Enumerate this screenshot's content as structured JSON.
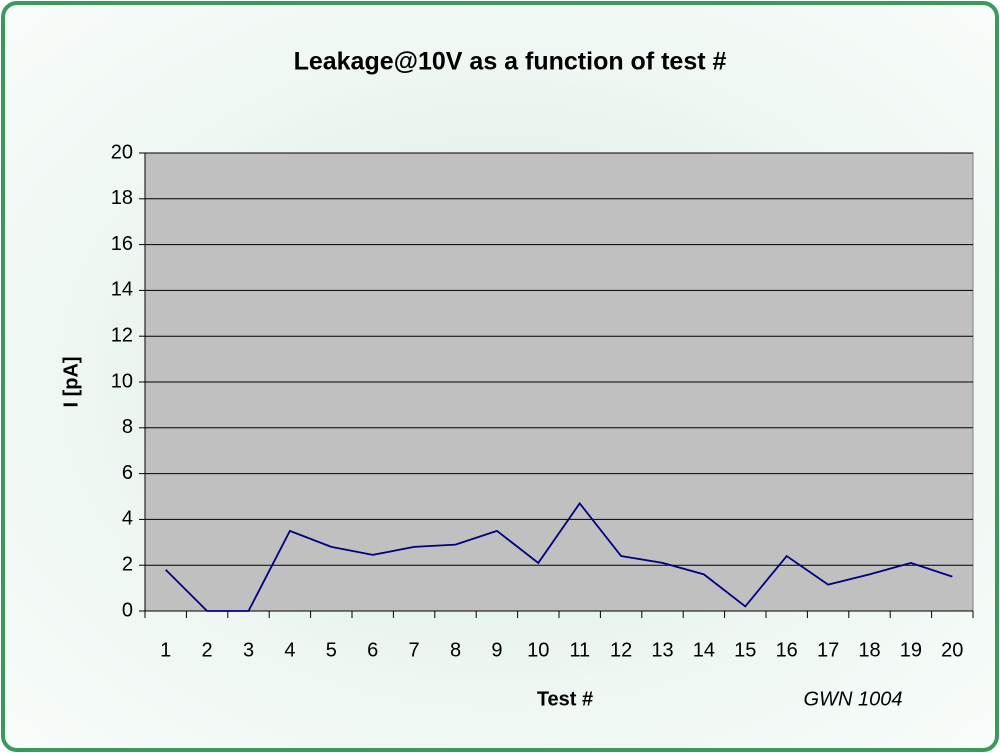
{
  "chart_data": {
    "type": "line",
    "title": "Leakage@10V as a function of test #",
    "x_label": "Test #",
    "y_label": "I [pA]",
    "annotation": "GWN 1004",
    "categories": [
      "1",
      "2",
      "3",
      "4",
      "5",
      "6",
      "7",
      "8",
      "9",
      "10",
      "11",
      "12",
      "13",
      "14",
      "15",
      "16",
      "17",
      "18",
      "19",
      "20"
    ],
    "series": [
      {
        "name": "Leakage",
        "color": "#000080",
        "values": [
          1.8,
          0,
          0,
          3.5,
          2.8,
          2.45,
          2.8,
          2.9,
          3.5,
          2.1,
          4.7,
          2.4,
          2.1,
          1.6,
          0.2,
          2.4,
          1.15,
          1.6,
          2.1,
          1.5
        ]
      }
    ],
    "ylim": [
      0,
      20
    ],
    "yticks": [
      0,
      2,
      4,
      6,
      8,
      10,
      12,
      14,
      16,
      18,
      20
    ],
    "grid": true,
    "plot_background": "#c0c0c0"
  }
}
